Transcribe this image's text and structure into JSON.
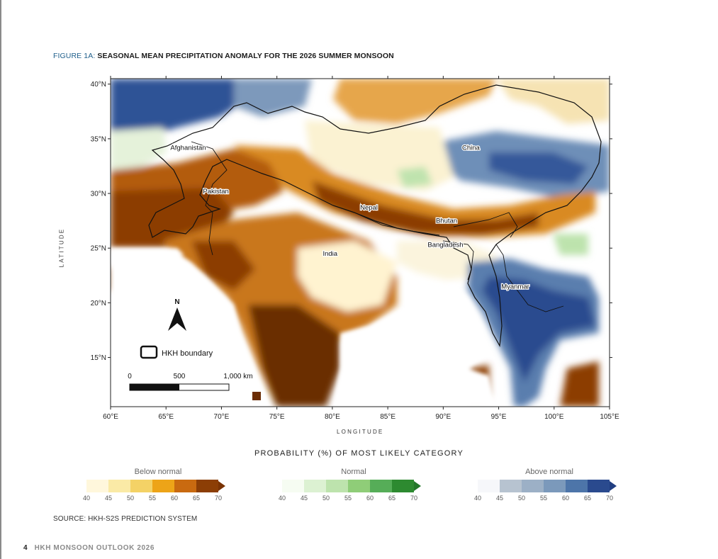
{
  "figure": {
    "label": "FIGURE 1A:",
    "title": "SEASONAL MEAN PRECIPITATION ANOMALY FOR THE 2026 SUMMER MONSOON"
  },
  "axes": {
    "ylabel": "LATITUDE",
    "xlabel": "LONGITUDE",
    "lat_ticks": [
      "40°N",
      "35°N",
      "30°N",
      "25°N",
      "20°N",
      "15°N"
    ],
    "lon_ticks": [
      "60°E",
      "65°E",
      "70°E",
      "75°E",
      "80°E",
      "85°E",
      "90°E",
      "95°E",
      "100°E",
      "105°E"
    ],
    "lon_range": [
      60,
      105
    ],
    "lat_range": [
      10.5,
      40.5
    ]
  },
  "countries": [
    {
      "name": "Afghanistan",
      "lon": 67.0,
      "lat": 34.0
    },
    {
      "name": "Pakistan",
      "lon": 69.5,
      "lat": 30.0
    },
    {
      "name": "Nepal",
      "lon": 83.3,
      "lat": 28.5
    },
    {
      "name": "Bhutan",
      "lon": 90.3,
      "lat": 27.3
    },
    {
      "name": "China",
      "lon": 92.5,
      "lat": 34.0
    },
    {
      "name": "India",
      "lon": 79.8,
      "lat": 24.3
    },
    {
      "name": "Bangladesh",
      "lon": 90.2,
      "lat": 25.1
    },
    {
      "name": "Myanmar",
      "lon": 96.5,
      "lat": 21.3
    }
  ],
  "map_elements": {
    "north": "N",
    "hkh_label": "HKH boundary",
    "scale": {
      "labels": [
        "0",
        "500",
        "1,000 km"
      ]
    }
  },
  "legend": {
    "title": "PROBABILITY (%) OF MOST LIKELY CATEGORY",
    "ticks": [
      "40",
      "45",
      "50",
      "55",
      "60",
      "65",
      "70"
    ],
    "groups": [
      {
        "name": "Below normal",
        "colors": [
          "#fff7dc",
          "#faeaa6",
          "#f4d266",
          "#eda418",
          "#c96a10",
          "#8c3e05"
        ],
        "arrow": "#7a3304"
      },
      {
        "name": "Normal",
        "colors": [
          "#f6fcf2",
          "#dcf1d2",
          "#bde3ad",
          "#8fcd78",
          "#56ad58",
          "#2d8a30"
        ],
        "arrow": "#24772a"
      },
      {
        "name": "Above normal",
        "colors": [
          "#f6f7fa",
          "#b7c3d0",
          "#9cb0c6",
          "#7b99bb",
          "#4d75a9",
          "#2a4a8e"
        ],
        "arrow": "#213e82"
      }
    ]
  },
  "source": "SOURCE: HKH-S2S PREDICTION SYSTEM",
  "footer": {
    "page": "4",
    "title": "HKH MONSOON OUTLOOK 2026"
  }
}
